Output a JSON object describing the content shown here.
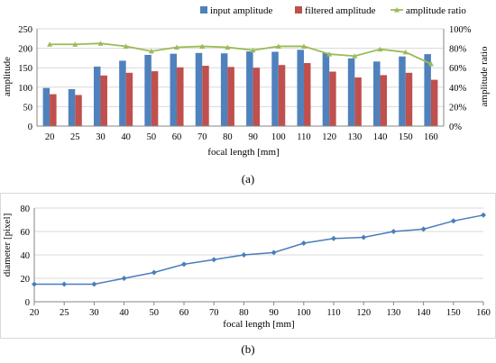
{
  "chart_data": [
    {
      "type": "bar",
      "panel_label": "(a)",
      "categories": [
        "20",
        "25",
        "30",
        "40",
        "50",
        "60",
        "70",
        "80",
        "90",
        "100",
        "110",
        "120",
        "130",
        "140",
        "150",
        "160"
      ],
      "series": [
        {
          "name": "input amplitude",
          "kind": "bar",
          "color": "#4f81bd",
          "axis": "left",
          "values": [
            98,
            95,
            153,
            168,
            183,
            186,
            188,
            187,
            192,
            191,
            196,
            188,
            174,
            166,
            179,
            185
          ]
        },
        {
          "name": "filtered amplitude",
          "kind": "bar",
          "color": "#c0504d",
          "axis": "left",
          "values": [
            82,
            80,
            130,
            137,
            141,
            151,
            155,
            152,
            150,
            157,
            162,
            140,
            125,
            131,
            137,
            119
          ]
        },
        {
          "name": "amplitude ratio",
          "kind": "line",
          "color": "#9bbb59",
          "axis": "right",
          "values": [
            84,
            84,
            85,
            82,
            77,
            81,
            82,
            81,
            78,
            82,
            82,
            74,
            72,
            79,
            76,
            64
          ]
        }
      ],
      "xlabel": "focal length [mm]",
      "ylabel": "amplitude",
      "y2label": "amplitude ratio",
      "ylim": [
        0,
        250
      ],
      "yticks": [
        "0",
        "50",
        "100",
        "150",
        "200",
        "250"
      ],
      "y2lim": [
        0,
        100
      ],
      "y2ticks": [
        "0%",
        "20%",
        "40%",
        "60%",
        "80%",
        "100%"
      ],
      "grid": true,
      "legend_position": "top-right"
    },
    {
      "type": "line",
      "panel_label": "(b)",
      "categories": [
        "20",
        "25",
        "30",
        "40",
        "50",
        "60",
        "70",
        "80",
        "90",
        "100",
        "110",
        "120",
        "130",
        "140",
        "150",
        "160"
      ],
      "series": [
        {
          "color": "#4a7ebb",
          "values": [
            15,
            15,
            15,
            20,
            25,
            32,
            36,
            40,
            42,
            50,
            54,
            55,
            60,
            62,
            69,
            74
          ]
        }
      ],
      "xlabel": "focal length [mm]",
      "ylabel": "diameter [pixel]",
      "ylim": [
        0,
        80
      ],
      "yticks": [
        "0",
        "20",
        "40",
        "60",
        "80"
      ],
      "grid": true
    }
  ]
}
